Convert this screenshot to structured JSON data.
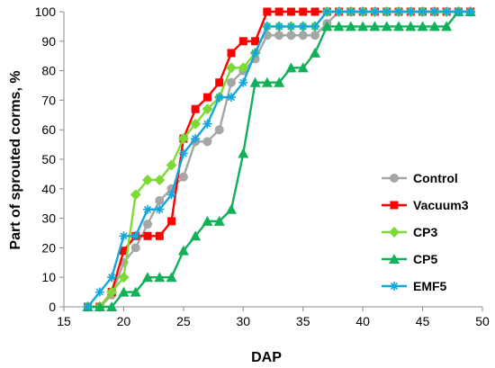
{
  "chart_data": {
    "type": "line",
    "xlabel": "DAP",
    "ylabel": "Part of sprouted corms, %",
    "xlim": [
      15,
      50
    ],
    "ylim": [
      0,
      100
    ],
    "xticks": [
      15,
      20,
      25,
      30,
      35,
      40,
      45,
      50
    ],
    "yticks": [
      0,
      10,
      20,
      30,
      40,
      50,
      60,
      70,
      80,
      90,
      100
    ],
    "grid": false,
    "legend_position": "right",
    "series": [
      {
        "name": "Control",
        "color": "#A6A6A6",
        "marker": "circle",
        "points": [
          [
            17,
            0
          ],
          [
            18,
            0
          ],
          [
            19,
            4
          ],
          [
            20,
            15
          ],
          [
            21,
            20
          ],
          [
            22,
            28
          ],
          [
            23,
            36
          ],
          [
            24,
            40
          ],
          [
            25,
            44
          ],
          [
            26,
            56
          ],
          [
            27,
            56
          ],
          [
            28,
            60
          ],
          [
            29,
            76
          ],
          [
            30,
            80
          ],
          [
            31,
            84
          ],
          [
            32,
            92
          ],
          [
            33,
            92
          ],
          [
            34,
            92
          ],
          [
            35,
            92
          ],
          [
            36,
            92
          ],
          [
            37,
            96
          ],
          [
            38,
            100
          ],
          [
            39,
            100
          ],
          [
            40,
            100
          ],
          [
            41,
            100
          ],
          [
            42,
            100
          ],
          [
            43,
            100
          ],
          [
            44,
            100
          ],
          [
            45,
            100
          ],
          [
            46,
            100
          ],
          [
            47,
            100
          ],
          [
            48,
            100
          ],
          [
            49,
            100
          ]
        ]
      },
      {
        "name": "Vacuum3",
        "color": "#FF0000",
        "marker": "square",
        "points": [
          [
            17,
            0
          ],
          [
            18,
            0
          ],
          [
            19,
            5
          ],
          [
            20,
            19
          ],
          [
            21,
            24
          ],
          [
            22,
            24
          ],
          [
            23,
            24
          ],
          [
            24,
            29
          ],
          [
            25,
            57
          ],
          [
            26,
            67
          ],
          [
            27,
            71
          ],
          [
            28,
            76
          ],
          [
            29,
            86
          ],
          [
            30,
            90
          ],
          [
            31,
            90
          ],
          [
            32,
            100
          ],
          [
            33,
            100
          ],
          [
            34,
            100
          ],
          [
            35,
            100
          ],
          [
            36,
            100
          ],
          [
            37,
            100
          ],
          [
            38,
            100
          ],
          [
            39,
            100
          ],
          [
            40,
            100
          ],
          [
            41,
            100
          ],
          [
            42,
            100
          ],
          [
            43,
            100
          ],
          [
            44,
            100
          ],
          [
            45,
            100
          ],
          [
            46,
            100
          ],
          [
            47,
            100
          ],
          [
            48,
            100
          ],
          [
            49,
            100
          ]
        ]
      },
      {
        "name": "CP3",
        "color": "#7CDA36",
        "marker": "diamond",
        "points": [
          [
            17,
            0
          ],
          [
            18,
            0
          ],
          [
            19,
            5
          ],
          [
            20,
            10
          ],
          [
            21,
            38
          ],
          [
            22,
            43
          ],
          [
            23,
            43
          ],
          [
            24,
            48
          ],
          [
            25,
            57
          ],
          [
            26,
            62
          ],
          [
            27,
            67
          ],
          [
            28,
            71
          ],
          [
            29,
            81
          ],
          [
            30,
            81
          ],
          [
            31,
            86
          ],
          [
            32,
            95
          ],
          [
            33,
            95
          ],
          [
            34,
            95
          ],
          [
            35,
            95
          ],
          [
            36,
            95
          ],
          [
            37,
            100
          ],
          [
            38,
            100
          ],
          [
            39,
            100
          ],
          [
            40,
            100
          ],
          [
            41,
            100
          ],
          [
            42,
            100
          ],
          [
            43,
            100
          ],
          [
            44,
            100
          ],
          [
            45,
            100
          ],
          [
            46,
            100
          ],
          [
            47,
            100
          ],
          [
            48,
            100
          ],
          [
            49,
            100
          ]
        ]
      },
      {
        "name": "CP5",
        "color": "#13B05A",
        "marker": "triangle",
        "points": [
          [
            17,
            0
          ],
          [
            18,
            0
          ],
          [
            19,
            0
          ],
          [
            20,
            5
          ],
          [
            21,
            5
          ],
          [
            22,
            10
          ],
          [
            23,
            10
          ],
          [
            24,
            10
          ],
          [
            25,
            19
          ],
          [
            26,
            24
          ],
          [
            27,
            29
          ],
          [
            28,
            29
          ],
          [
            29,
            33
          ],
          [
            30,
            52
          ],
          [
            31,
            76
          ],
          [
            32,
            76
          ],
          [
            33,
            76
          ],
          [
            34,
            81
          ],
          [
            35,
            81
          ],
          [
            36,
            86
          ],
          [
            37,
            95
          ],
          [
            38,
            95
          ],
          [
            39,
            95
          ],
          [
            40,
            95
          ],
          [
            41,
            95
          ],
          [
            42,
            95
          ],
          [
            43,
            95
          ],
          [
            44,
            95
          ],
          [
            45,
            95
          ],
          [
            46,
            95
          ],
          [
            47,
            95
          ],
          [
            48,
            100
          ],
          [
            49,
            100
          ]
        ]
      },
      {
        "name": "EMF5",
        "color": "#14A7DE",
        "marker": "asterisk",
        "points": [
          [
            17,
            0
          ],
          [
            18,
            5
          ],
          [
            19,
            10
          ],
          [
            20,
            24
          ],
          [
            21,
            24
          ],
          [
            22,
            33
          ],
          [
            23,
            33
          ],
          [
            24,
            38
          ],
          [
            25,
            52
          ],
          [
            26,
            57
          ],
          [
            27,
            62
          ],
          [
            28,
            71
          ],
          [
            29,
            71
          ],
          [
            30,
            76
          ],
          [
            31,
            86
          ],
          [
            32,
            95
          ],
          [
            33,
            95
          ],
          [
            34,
            95
          ],
          [
            35,
            95
          ],
          [
            36,
            95
          ],
          [
            37,
            100
          ],
          [
            38,
            100
          ],
          [
            39,
            100
          ],
          [
            40,
            100
          ],
          [
            41,
            100
          ],
          [
            42,
            100
          ],
          [
            43,
            100
          ],
          [
            44,
            100
          ],
          [
            45,
            100
          ],
          [
            46,
            100
          ],
          [
            47,
            100
          ],
          [
            48,
            100
          ],
          [
            49,
            100
          ]
        ]
      }
    ]
  }
}
